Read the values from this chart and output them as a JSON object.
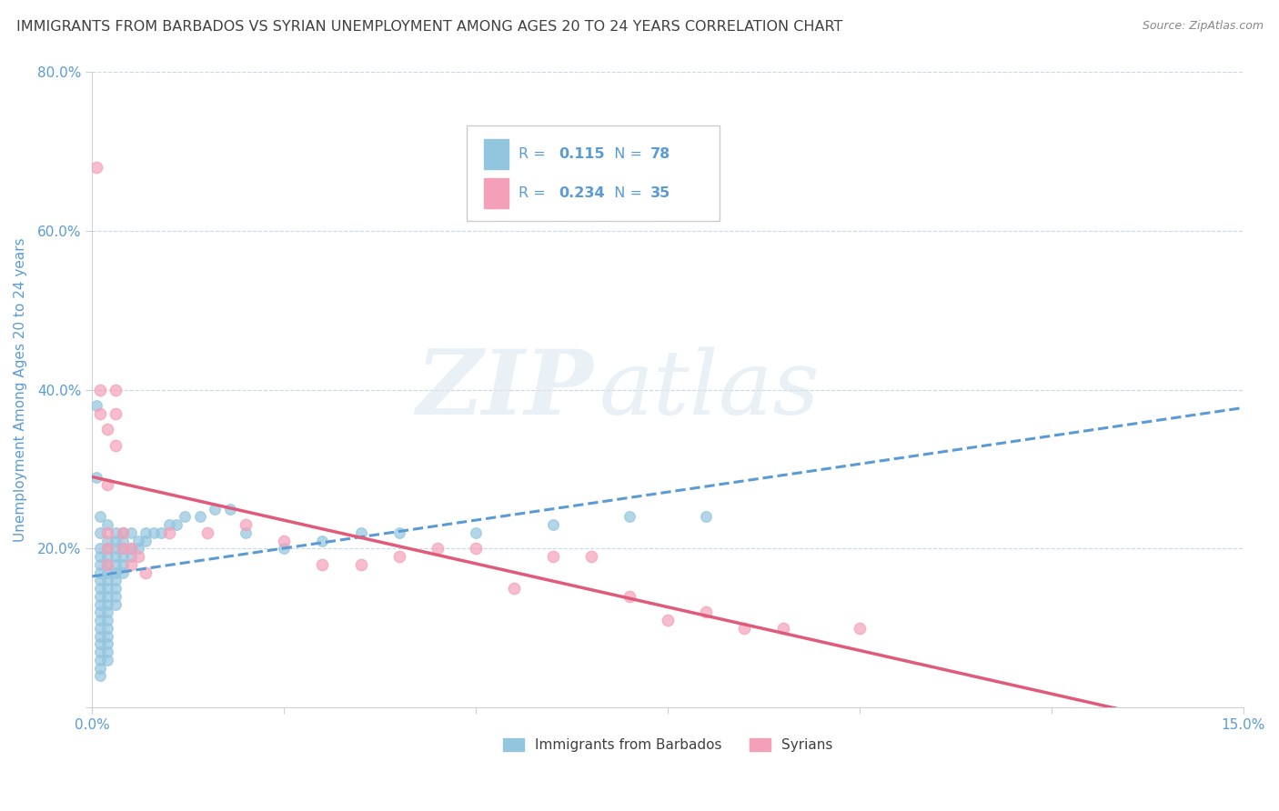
{
  "title": "IMMIGRANTS FROM BARBADOS VS SYRIAN UNEMPLOYMENT AMONG AGES 20 TO 24 YEARS CORRELATION CHART",
  "source": "Source: ZipAtlas.com",
  "ylabel": "Unemployment Among Ages 20 to 24 years",
  "xlim": [
    0.0,
    0.15
  ],
  "ylim": [
    0.0,
    0.8
  ],
  "xticks": [
    0.0,
    0.025,
    0.05,
    0.075,
    0.1,
    0.125,
    0.15
  ],
  "xtick_labels": [
    "0.0%",
    "",
    "",
    "",
    "",
    "",
    "15.0%"
  ],
  "yticks": [
    0.0,
    0.2,
    0.4,
    0.6,
    0.8
  ],
  "ytick_labels": [
    "",
    "20.0%",
    "40.0%",
    "60.0%",
    "80.0%"
  ],
  "blue_R": 0.115,
  "blue_N": 78,
  "pink_R": 0.234,
  "pink_N": 35,
  "blue_color": "#92c5de",
  "pink_color": "#f4a0b8",
  "blue_line_color": "#5b9bd5",
  "pink_line_color": "#e05a7a",
  "blue_scatter": [
    [
      0.0005,
      0.38
    ],
    [
      0.0005,
      0.29
    ],
    [
      0.001,
      0.24
    ],
    [
      0.001,
      0.22
    ],
    [
      0.001,
      0.2
    ],
    [
      0.001,
      0.19
    ],
    [
      0.001,
      0.18
    ],
    [
      0.001,
      0.17
    ],
    [
      0.001,
      0.16
    ],
    [
      0.001,
      0.15
    ],
    [
      0.001,
      0.14
    ],
    [
      0.001,
      0.13
    ],
    [
      0.001,
      0.12
    ],
    [
      0.001,
      0.11
    ],
    [
      0.001,
      0.1
    ],
    [
      0.001,
      0.09
    ],
    [
      0.001,
      0.08
    ],
    [
      0.001,
      0.07
    ],
    [
      0.001,
      0.06
    ],
    [
      0.001,
      0.05
    ],
    [
      0.001,
      0.04
    ],
    [
      0.002,
      0.23
    ],
    [
      0.002,
      0.21
    ],
    [
      0.002,
      0.2
    ],
    [
      0.002,
      0.19
    ],
    [
      0.002,
      0.18
    ],
    [
      0.002,
      0.17
    ],
    [
      0.002,
      0.16
    ],
    [
      0.002,
      0.15
    ],
    [
      0.002,
      0.14
    ],
    [
      0.002,
      0.13
    ],
    [
      0.002,
      0.12
    ],
    [
      0.002,
      0.11
    ],
    [
      0.002,
      0.1
    ],
    [
      0.002,
      0.09
    ],
    [
      0.002,
      0.08
    ],
    [
      0.002,
      0.07
    ],
    [
      0.003,
      0.22
    ],
    [
      0.003,
      0.21
    ],
    [
      0.003,
      0.2
    ],
    [
      0.003,
      0.19
    ],
    [
      0.003,
      0.18
    ],
    [
      0.003,
      0.17
    ],
    [
      0.003,
      0.16
    ],
    [
      0.003,
      0.15
    ],
    [
      0.003,
      0.14
    ],
    [
      0.003,
      0.13
    ],
    [
      0.004,
      0.22
    ],
    [
      0.004,
      0.21
    ],
    [
      0.004,
      0.2
    ],
    [
      0.004,
      0.19
    ],
    [
      0.004,
      0.18
    ],
    [
      0.004,
      0.17
    ],
    [
      0.005,
      0.22
    ],
    [
      0.005,
      0.2
    ],
    [
      0.005,
      0.19
    ],
    [
      0.006,
      0.21
    ],
    [
      0.006,
      0.2
    ],
    [
      0.007,
      0.22
    ],
    [
      0.007,
      0.21
    ],
    [
      0.008,
      0.22
    ],
    [
      0.009,
      0.22
    ],
    [
      0.01,
      0.23
    ],
    [
      0.011,
      0.23
    ],
    [
      0.012,
      0.24
    ],
    [
      0.014,
      0.24
    ],
    [
      0.016,
      0.25
    ],
    [
      0.018,
      0.25
    ],
    [
      0.02,
      0.22
    ],
    [
      0.025,
      0.2
    ],
    [
      0.03,
      0.21
    ],
    [
      0.035,
      0.22
    ],
    [
      0.04,
      0.22
    ],
    [
      0.05,
      0.22
    ],
    [
      0.06,
      0.23
    ],
    [
      0.07,
      0.24
    ],
    [
      0.08,
      0.24
    ],
    [
      0.002,
      0.06
    ]
  ],
  "pink_scatter": [
    [
      0.0005,
      0.68
    ],
    [
      0.001,
      0.4
    ],
    [
      0.001,
      0.37
    ],
    [
      0.002,
      0.35
    ],
    [
      0.002,
      0.28
    ],
    [
      0.002,
      0.22
    ],
    [
      0.002,
      0.2
    ],
    [
      0.002,
      0.18
    ],
    [
      0.003,
      0.4
    ],
    [
      0.003,
      0.37
    ],
    [
      0.003,
      0.33
    ],
    [
      0.004,
      0.22
    ],
    [
      0.004,
      0.2
    ],
    [
      0.005,
      0.2
    ],
    [
      0.005,
      0.18
    ],
    [
      0.006,
      0.19
    ],
    [
      0.007,
      0.17
    ],
    [
      0.01,
      0.22
    ],
    [
      0.015,
      0.22
    ],
    [
      0.02,
      0.23
    ],
    [
      0.025,
      0.21
    ],
    [
      0.03,
      0.18
    ],
    [
      0.035,
      0.18
    ],
    [
      0.04,
      0.19
    ],
    [
      0.045,
      0.2
    ],
    [
      0.05,
      0.2
    ],
    [
      0.055,
      0.15
    ],
    [
      0.06,
      0.19
    ],
    [
      0.065,
      0.19
    ],
    [
      0.07,
      0.14
    ],
    [
      0.075,
      0.11
    ],
    [
      0.08,
      0.12
    ],
    [
      0.085,
      0.1
    ],
    [
      0.09,
      0.1
    ],
    [
      0.1,
      0.1
    ]
  ],
  "watermark_zip": "ZIP",
  "watermark_atlas": "atlas",
  "title_color": "#404040",
  "axis_label_color": "#5b9bd5",
  "tick_color": "#5b9bd5",
  "grid_color": "#c8d8e8",
  "title_fontsize": 11.5,
  "legend_text_color": "#5b9bd5"
}
